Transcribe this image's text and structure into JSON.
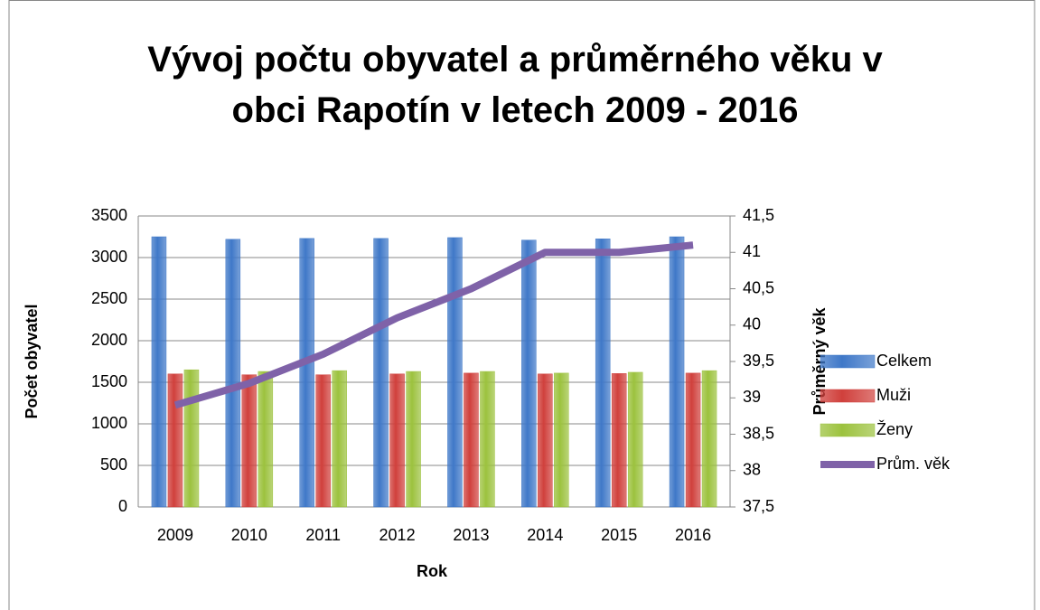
{
  "chart_data": {
    "type": "bar",
    "title": "Vývoj počtu obyvatel a průměrného věku v obci Rapotín v letech 2009 - 2016",
    "x_label": "Rok",
    "y_label": "Počet obyvatel",
    "y2_label": "Průměrný věk",
    "categories": [
      "2009",
      "2010",
      "2011",
      "2012",
      "2013",
      "2014",
      "2015",
      "2016"
    ],
    "series": [
      {
        "name": "Celkem",
        "color": "#3f78c8",
        "values": [
          3250,
          3220,
          3230,
          3230,
          3240,
          3210,
          3225,
          3250
        ]
      },
      {
        "name": "Muži",
        "color": "#d0403c",
        "values": [
          1600,
          1590,
          1590,
          1600,
          1610,
          1600,
          1605,
          1610
        ]
      },
      {
        "name": "Ženy",
        "color": "#9cc23e",
        "values": [
          1650,
          1630,
          1640,
          1630,
          1630,
          1610,
          1620,
          1640
        ]
      },
      {
        "name": "Prům. věk",
        "color": "#7f62a8",
        "type": "line",
        "axis": "y2",
        "values": [
          38.9,
          39.2,
          39.6,
          40.1,
          40.5,
          41.0,
          41.0,
          41.1
        ]
      }
    ],
    "ylim": [
      0,
      3500
    ],
    "yticks": [
      0,
      500,
      1000,
      1500,
      2000,
      2500,
      3000,
      3500
    ],
    "y2lim": [
      37.5,
      41.5
    ],
    "y2ticks": [
      {
        "value": 37.5,
        "label": "37,5"
      },
      38,
      {
        "value": 38.5,
        "label": "38,5"
      },
      39,
      {
        "value": 39.5,
        "label": "39,5"
      },
      40,
      {
        "value": 40.5,
        "label": "40,5"
      },
      41,
      {
        "value": 41.5,
        "label": "41,5"
      }
    ],
    "grid": true,
    "legend": "right"
  }
}
